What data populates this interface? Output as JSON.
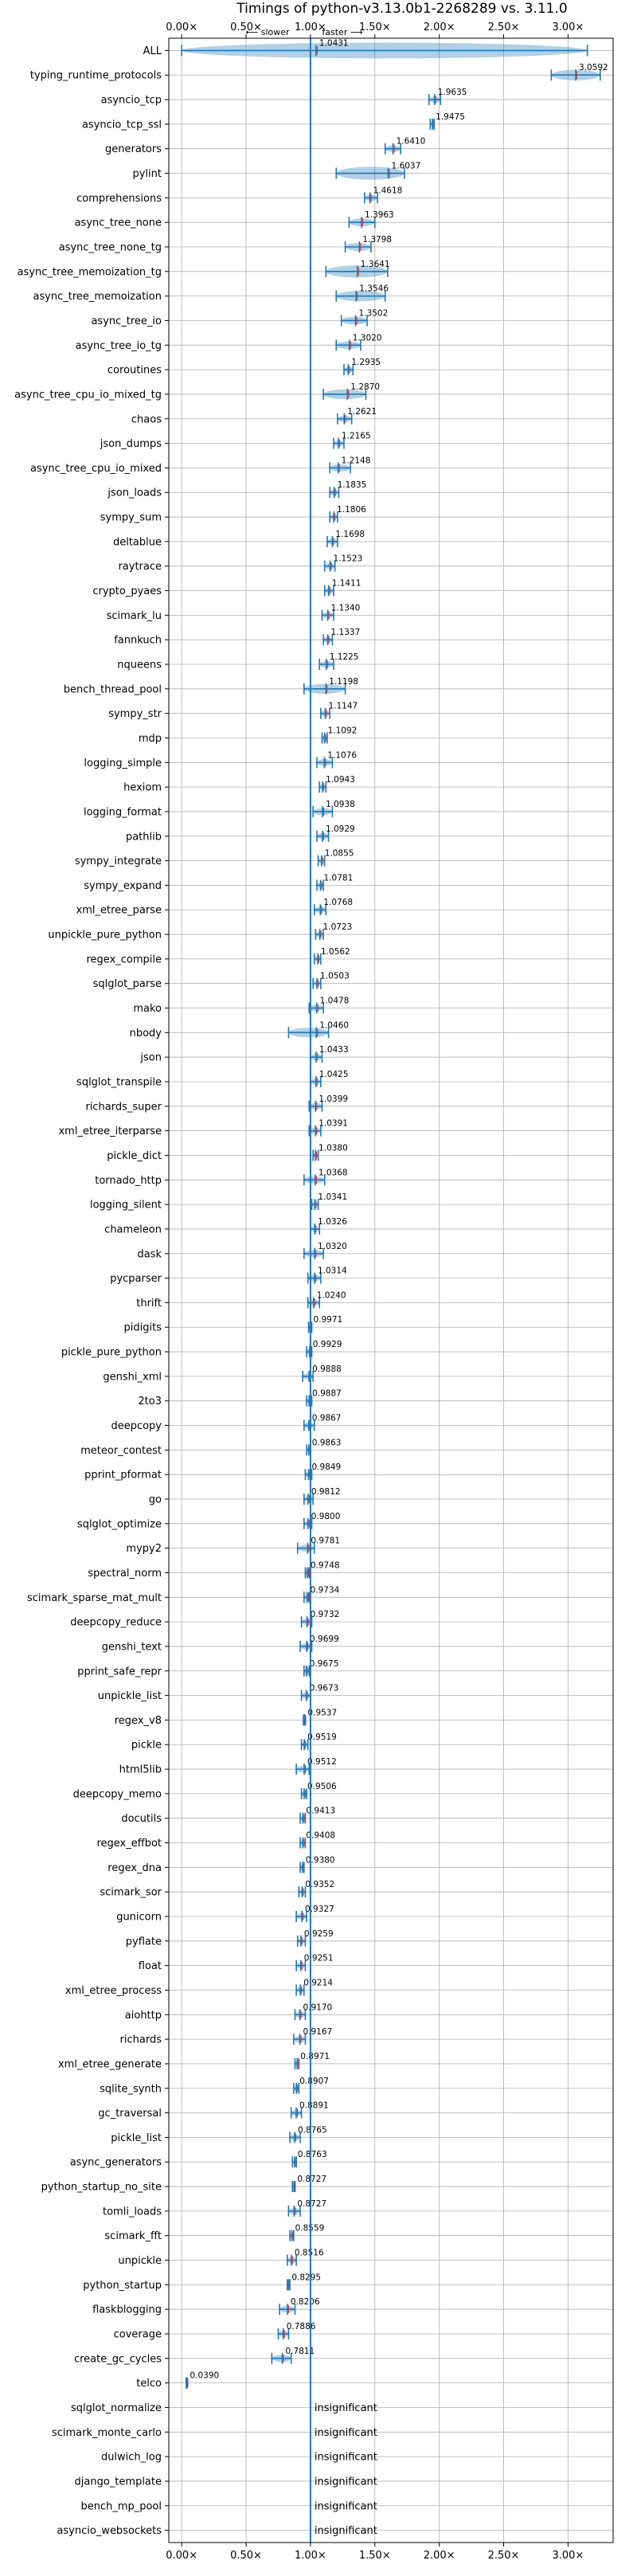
{
  "chart_data": {
    "type": "scatter",
    "title": "Timings of python-v3.13.0b1-2268289 vs. 3.11.0",
    "xlabel": "",
    "ylabel": "",
    "x_scale": "linear",
    "xlim": [
      -0.1,
      3.35
    ],
    "x_ticks": [
      0.0,
      0.5,
      1.0,
      1.5,
      2.0,
      2.5,
      3.0
    ],
    "x_tick_labels": [
      "0.00×",
      "0.50×",
      "1.00×",
      "1.50×",
      "2.00×",
      "2.50×",
      "3.00×"
    ],
    "reference_line": 1.0,
    "direction_labels": {
      "slower": "⟵ slower",
      "faster": "faster ⟶"
    },
    "grid": true,
    "insignificant_label": "insignificant",
    "colors": {
      "mean_marker": "#1f77b4",
      "distribution": "#1f77b4",
      "median_marker": "#d62728",
      "reference_line": "#1f77b4",
      "grid": "#b0b0b0"
    },
    "benchmarks": [
      {
        "name": "ALL",
        "value": 1.0431,
        "label": "1.0431",
        "lo": 0.0,
        "hi": 3.15
      },
      {
        "name": "typing_runtime_protocols",
        "value": 3.0592,
        "label": "3.0592",
        "lo": 2.87,
        "hi": 3.25
      },
      {
        "name": "asyncio_tcp",
        "value": 1.9635,
        "label": "1.9635",
        "lo": 1.92,
        "hi": 2.01
      },
      {
        "name": "asyncio_tcp_ssl",
        "value": 1.9475,
        "label": "1.9475",
        "lo": 1.93,
        "hi": 1.96
      },
      {
        "name": "generators",
        "value": 1.641,
        "label": "1.6410",
        "lo": 1.58,
        "hi": 1.7
      },
      {
        "name": "pylint",
        "value": 1.6037,
        "label": "1.6037",
        "lo": 1.2,
        "hi": 1.73
      },
      {
        "name": "comprehensions",
        "value": 1.4618,
        "label": "1.4618",
        "lo": 1.42,
        "hi": 1.52
      },
      {
        "name": "async_tree_none",
        "value": 1.3963,
        "label": "1.3963",
        "lo": 1.3,
        "hi": 1.5
      },
      {
        "name": "async_tree_none_tg",
        "value": 1.3798,
        "label": "1.3798",
        "lo": 1.27,
        "hi": 1.47
      },
      {
        "name": "async_tree_memoization_tg",
        "value": 1.3641,
        "label": "1.3641",
        "lo": 1.12,
        "hi": 1.6
      },
      {
        "name": "async_tree_memoization",
        "value": 1.3546,
        "label": "1.3546",
        "lo": 1.2,
        "hi": 1.58
      },
      {
        "name": "async_tree_io",
        "value": 1.3502,
        "label": "1.3502",
        "lo": 1.24,
        "hi": 1.44
      },
      {
        "name": "async_tree_io_tg",
        "value": 1.302,
        "label": "1.3020",
        "lo": 1.2,
        "hi": 1.39
      },
      {
        "name": "coroutines",
        "value": 1.2935,
        "label": "1.2935",
        "lo": 1.26,
        "hi": 1.33
      },
      {
        "name": "async_tree_cpu_io_mixed_tg",
        "value": 1.287,
        "label": "1.2870",
        "lo": 1.1,
        "hi": 1.43
      },
      {
        "name": "chaos",
        "value": 1.2621,
        "label": "1.2621",
        "lo": 1.21,
        "hi": 1.32
      },
      {
        "name": "json_dumps",
        "value": 1.2165,
        "label": "1.2165",
        "lo": 1.18,
        "hi": 1.26
      },
      {
        "name": "async_tree_cpu_io_mixed",
        "value": 1.2148,
        "label": "1.2148",
        "lo": 1.15,
        "hi": 1.31
      },
      {
        "name": "json_loads",
        "value": 1.1835,
        "label": "1.1835",
        "lo": 1.15,
        "hi": 1.22
      },
      {
        "name": "sympy_sum",
        "value": 1.1806,
        "label": "1.1806",
        "lo": 1.15,
        "hi": 1.21
      },
      {
        "name": "deltablue",
        "value": 1.1698,
        "label": "1.1698",
        "lo": 1.13,
        "hi": 1.21
      },
      {
        "name": "raytrace",
        "value": 1.1523,
        "label": "1.1523",
        "lo": 1.11,
        "hi": 1.19
      },
      {
        "name": "crypto_pyaes",
        "value": 1.1411,
        "label": "1.1411",
        "lo": 1.11,
        "hi": 1.18
      },
      {
        "name": "scimark_lu",
        "value": 1.134,
        "label": "1.1340",
        "lo": 1.09,
        "hi": 1.18
      },
      {
        "name": "fannkuch",
        "value": 1.1337,
        "label": "1.1337",
        "lo": 1.1,
        "hi": 1.17
      },
      {
        "name": "nqueens",
        "value": 1.1225,
        "label": "1.1225",
        "lo": 1.07,
        "hi": 1.18
      },
      {
        "name": "bench_thread_pool",
        "value": 1.1198,
        "label": "1.1198",
        "lo": 0.95,
        "hi": 1.27
      },
      {
        "name": "sympy_str",
        "value": 1.1147,
        "label": "1.1147",
        "lo": 1.08,
        "hi": 1.15
      },
      {
        "name": "mdp",
        "value": 1.1092,
        "label": "1.1092",
        "lo": 1.09,
        "hi": 1.13
      },
      {
        "name": "logging_simple",
        "value": 1.1076,
        "label": "1.1076",
        "lo": 1.05,
        "hi": 1.17
      },
      {
        "name": "hexiom",
        "value": 1.0943,
        "label": "1.0943",
        "lo": 1.07,
        "hi": 1.12
      },
      {
        "name": "logging_format",
        "value": 1.0938,
        "label": "1.0938",
        "lo": 1.02,
        "hi": 1.17
      },
      {
        "name": "pathlib",
        "value": 1.0929,
        "label": "1.0929",
        "lo": 1.05,
        "hi": 1.14
      },
      {
        "name": "sympy_integrate",
        "value": 1.0855,
        "label": "1.0855",
        "lo": 1.06,
        "hi": 1.11
      },
      {
        "name": "sympy_expand",
        "value": 1.0781,
        "label": "1.0781",
        "lo": 1.05,
        "hi": 1.1
      },
      {
        "name": "xml_etree_parse",
        "value": 1.0768,
        "label": "1.0768",
        "lo": 1.03,
        "hi": 1.12
      },
      {
        "name": "unpickle_pure_python",
        "value": 1.0723,
        "label": "1.0723",
        "lo": 1.04,
        "hi": 1.1
      },
      {
        "name": "regex_compile",
        "value": 1.0562,
        "label": "1.0562",
        "lo": 1.03,
        "hi": 1.08
      },
      {
        "name": "sqlglot_parse",
        "value": 1.0503,
        "label": "1.0503",
        "lo": 1.02,
        "hi": 1.08
      },
      {
        "name": "mako",
        "value": 1.0478,
        "label": "1.0478",
        "lo": 0.99,
        "hi": 1.1
      },
      {
        "name": "nbody",
        "value": 1.046,
        "label": "1.0460",
        "lo": 0.83,
        "hi": 1.14
      },
      {
        "name": "json",
        "value": 1.0433,
        "label": "1.0433",
        "lo": 1.0,
        "hi": 1.09
      },
      {
        "name": "sqlglot_transpile",
        "value": 1.0425,
        "label": "1.0425",
        "lo": 1.0,
        "hi": 1.08
      },
      {
        "name": "richards_super",
        "value": 1.0399,
        "label": "1.0399",
        "lo": 0.99,
        "hi": 1.09
      },
      {
        "name": "xml_etree_iterparse",
        "value": 1.0391,
        "label": "1.0391",
        "lo": 0.99,
        "hi": 1.08
      },
      {
        "name": "pickle_dict",
        "value": 1.038,
        "label": "1.0380",
        "lo": 1.02,
        "hi": 1.06
      },
      {
        "name": "tornado_http",
        "value": 1.0368,
        "label": "1.0368",
        "lo": 0.95,
        "hi": 1.11
      },
      {
        "name": "logging_silent",
        "value": 1.0341,
        "label": "1.0341",
        "lo": 1.01,
        "hi": 1.06
      },
      {
        "name": "chameleon",
        "value": 1.0326,
        "label": "1.0326",
        "lo": 1.0,
        "hi": 1.07
      },
      {
        "name": "dask",
        "value": 1.032,
        "label": "1.0320",
        "lo": 0.95,
        "hi": 1.1
      },
      {
        "name": "pycparser",
        "value": 1.0314,
        "label": "1.0314",
        "lo": 0.98,
        "hi": 1.08
      },
      {
        "name": "thrift",
        "value": 1.024,
        "label": "1.0240",
        "lo": 0.98,
        "hi": 1.07
      },
      {
        "name": "pidigits",
        "value": 0.9971,
        "label": "0.9971",
        "lo": 0.985,
        "hi": 1.01
      },
      {
        "name": "pickle_pure_python",
        "value": 0.9929,
        "label": "0.9929",
        "lo": 0.97,
        "hi": 1.01
      },
      {
        "name": "genshi_xml",
        "value": 0.9888,
        "label": "0.9888",
        "lo": 0.94,
        "hi": 1.02
      },
      {
        "name": "2to3",
        "value": 0.9887,
        "label": "0.9887",
        "lo": 0.97,
        "hi": 1.01
      },
      {
        "name": "deepcopy",
        "value": 0.9867,
        "label": "0.9867",
        "lo": 0.95,
        "hi": 1.03
      },
      {
        "name": "meteor_contest",
        "value": 0.9863,
        "label": "0.9863",
        "lo": 0.97,
        "hi": 1.0
      },
      {
        "name": "pprint_pformat",
        "value": 0.9849,
        "label": "0.9849",
        "lo": 0.96,
        "hi": 1.01
      },
      {
        "name": "go",
        "value": 0.9812,
        "label": "0.9812",
        "lo": 0.95,
        "hi": 1.02
      },
      {
        "name": "sqlglot_optimize",
        "value": 0.98,
        "label": "0.9800",
        "lo": 0.95,
        "hi": 1.01
      },
      {
        "name": "mypy2",
        "value": 0.9781,
        "label": "0.9781",
        "lo": 0.9,
        "hi": 1.03
      },
      {
        "name": "spectral_norm",
        "value": 0.9748,
        "label": "0.9748",
        "lo": 0.96,
        "hi": 0.99
      },
      {
        "name": "scimark_sparse_mat_mult",
        "value": 0.9734,
        "label": "0.9734",
        "lo": 0.95,
        "hi": 0.99
      },
      {
        "name": "deepcopy_reduce",
        "value": 0.9732,
        "label": "0.9732",
        "lo": 0.93,
        "hi": 1.01
      },
      {
        "name": "genshi_text",
        "value": 0.9699,
        "label": "0.9699",
        "lo": 0.92,
        "hi": 1.01
      },
      {
        "name": "pprint_safe_repr",
        "value": 0.9675,
        "label": "0.9675",
        "lo": 0.95,
        "hi": 0.99
      },
      {
        "name": "unpickle_list",
        "value": 0.9673,
        "label": "0.9673",
        "lo": 0.93,
        "hi": 1.0
      },
      {
        "name": "regex_v8",
        "value": 0.9537,
        "label": "0.9537",
        "lo": 0.945,
        "hi": 0.96
      },
      {
        "name": "pickle",
        "value": 0.9519,
        "label": "0.9519",
        "lo": 0.93,
        "hi": 0.98
      },
      {
        "name": "html5lib",
        "value": 0.9512,
        "label": "0.9512",
        "lo": 0.89,
        "hi": 0.99
      },
      {
        "name": "deepcopy_memo",
        "value": 0.9506,
        "label": "0.9506",
        "lo": 0.93,
        "hi": 0.97
      },
      {
        "name": "docutils",
        "value": 0.9413,
        "label": "0.9413",
        "lo": 0.92,
        "hi": 0.96
      },
      {
        "name": "regex_effbot",
        "value": 0.9408,
        "label": "0.9408",
        "lo": 0.92,
        "hi": 0.96
      },
      {
        "name": "regex_dna",
        "value": 0.938,
        "label": "0.9380",
        "lo": 0.92,
        "hi": 0.95
      },
      {
        "name": "scimark_sor",
        "value": 0.9352,
        "label": "0.9352",
        "lo": 0.91,
        "hi": 0.96
      },
      {
        "name": "gunicorn",
        "value": 0.9327,
        "label": "0.9327",
        "lo": 0.89,
        "hi": 0.97
      },
      {
        "name": "pyflate",
        "value": 0.9259,
        "label": "0.9259",
        "lo": 0.9,
        "hi": 0.96
      },
      {
        "name": "float",
        "value": 0.9251,
        "label": "0.9251",
        "lo": 0.89,
        "hi": 0.96
      },
      {
        "name": "xml_etree_process",
        "value": 0.9214,
        "label": "0.9214",
        "lo": 0.89,
        "hi": 0.95
      },
      {
        "name": "aiohttp",
        "value": 0.917,
        "label": "0.9170",
        "lo": 0.88,
        "hi": 0.96
      },
      {
        "name": "richards",
        "value": 0.9167,
        "label": "0.9167",
        "lo": 0.87,
        "hi": 0.96
      },
      {
        "name": "xml_etree_generate",
        "value": 0.8971,
        "label": "0.8971",
        "lo": 0.88,
        "hi": 0.91
      },
      {
        "name": "sqlite_synth",
        "value": 0.8907,
        "label": "0.8907",
        "lo": 0.87,
        "hi": 0.91
      },
      {
        "name": "gc_traversal",
        "value": 0.8891,
        "label": "0.8891",
        "lo": 0.85,
        "hi": 0.93
      },
      {
        "name": "pickle_list",
        "value": 0.8765,
        "label": "0.8765",
        "lo": 0.84,
        "hi": 0.92
      },
      {
        "name": "async_generators",
        "value": 0.8763,
        "label": "0.8763",
        "lo": 0.86,
        "hi": 0.89
      },
      {
        "name": "python_startup_no_site",
        "value": 0.8727,
        "label": "0.8727",
        "lo": 0.86,
        "hi": 0.88
      },
      {
        "name": "tomli_loads",
        "value": 0.8727,
        "label": "0.8727",
        "lo": 0.83,
        "hi": 0.92
      },
      {
        "name": "scimark_fft",
        "value": 0.8559,
        "label": "0.8559",
        "lo": 0.84,
        "hi": 0.87
      },
      {
        "name": "unpickle",
        "value": 0.8516,
        "label": "0.8516",
        "lo": 0.82,
        "hi": 0.89
      },
      {
        "name": "python_startup",
        "value": 0.8295,
        "label": "0.8295",
        "lo": 0.82,
        "hi": 0.84
      },
      {
        "name": "flaskblogging",
        "value": 0.8206,
        "label": "0.8206",
        "lo": 0.76,
        "hi": 0.88
      },
      {
        "name": "coverage",
        "value": 0.7886,
        "label": "0.7886",
        "lo": 0.75,
        "hi": 0.83
      },
      {
        "name": "create_gc_cycles",
        "value": 0.7811,
        "label": "0.7811",
        "lo": 0.7,
        "hi": 0.85
      },
      {
        "name": "telco",
        "value": 0.039,
        "label": "0.0390",
        "lo": 0.035,
        "hi": 0.043
      },
      {
        "name": "sqlglot_normalize",
        "value": null,
        "label": "insignificant"
      },
      {
        "name": "scimark_monte_carlo",
        "value": null,
        "label": "insignificant"
      },
      {
        "name": "dulwich_log",
        "value": null,
        "label": "insignificant"
      },
      {
        "name": "django_template",
        "value": null,
        "label": "insignificant"
      },
      {
        "name": "bench_mp_pool",
        "value": null,
        "label": "insignificant"
      },
      {
        "name": "asyncio_websockets",
        "value": null,
        "label": "insignificant"
      }
    ]
  }
}
